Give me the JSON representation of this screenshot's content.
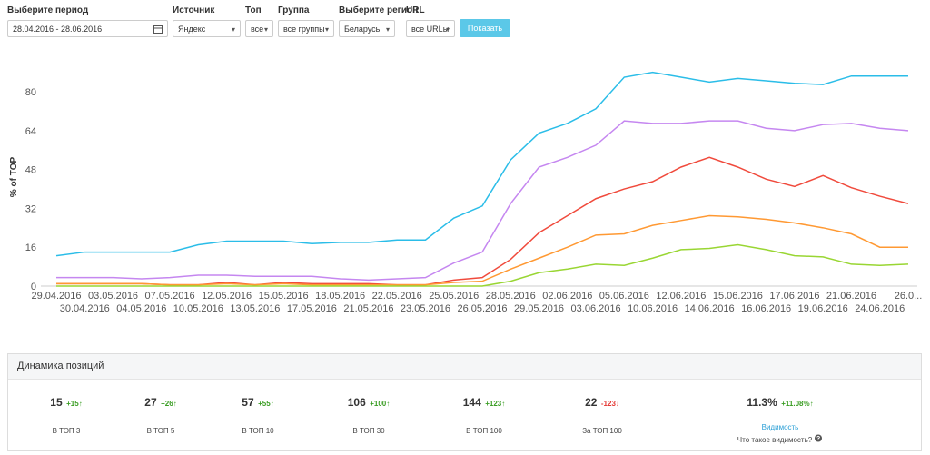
{
  "filters": [
    {
      "label": "Выберите период",
      "value": "28.04.2016 - 28.06.2016"
    },
    {
      "label": "Источник",
      "value": "Яндекс"
    },
    {
      "label": "Топ",
      "value": "все"
    },
    {
      "label": "Группа",
      "value": "все группы"
    },
    {
      "label": "Выберите регион",
      "value": "Беларусь"
    },
    {
      "label": "URL",
      "value": "все URLы"
    }
  ],
  "button": "Показать",
  "chart_data": {
    "type": "line",
    "y_label": "% of TOP",
    "categories": [
      "29.04.2016",
      "30.04.2016",
      "03.05.2016",
      "04.05.2016",
      "07.05.2016",
      "10.05.2016",
      "12.05.2016",
      "13.05.2016",
      "15.05.2016",
      "17.05.2016",
      "18.05.2016",
      "21.05.2016",
      "22.05.2016",
      "23.05.2016",
      "25.05.2016",
      "26.05.2016",
      "28.05.2016",
      "29.05.2016",
      "02.06.2016",
      "03.06.2016",
      "05.06.2016",
      "10.06.2016",
      "12.06.2016",
      "14.06.2016",
      "15.06.2016",
      "16.06.2016",
      "17.06.2016",
      "19.06.2016",
      "21.06.2016",
      "24.06.2016",
      "26.0..."
    ],
    "series": [
      {
        "color": "#2bbde8",
        "values": [
          12.5,
          14,
          14,
          14,
          14,
          17,
          18.5,
          18.5,
          18.5,
          17.5,
          18,
          18,
          19,
          19,
          28,
          33,
          52,
          63,
          67,
          73,
          86,
          88,
          86,
          84,
          85.5,
          84.5,
          83.5,
          83,
          86.5,
          86.5,
          86.5
        ]
      },
      {
        "color": "#c587f0",
        "values": [
          3.5,
          3.5,
          3.5,
          3,
          3.5,
          4.5,
          4.5,
          4,
          4,
          4,
          3,
          2.5,
          3,
          3.5,
          9.5,
          14,
          34,
          49,
          53,
          58,
          68,
          67,
          67,
          68,
          68,
          65,
          64,
          66.5,
          67,
          65,
          64
        ]
      },
      {
        "color": "#f04a3c",
        "values": [
          1,
          1,
          1,
          1,
          0.5,
          0.5,
          1.5,
          0.5,
          1.5,
          1,
          1,
          1,
          0.5,
          0.5,
          2.5,
          3.5,
          11,
          22,
          29,
          36,
          40,
          43,
          49,
          53,
          49,
          44,
          41,
          45.5,
          40.5,
          37,
          34
        ]
      },
      {
        "color": "#ff9933",
        "values": [
          1,
          1,
          1,
          1,
          0.5,
          0.5,
          1,
          0.5,
          1,
          0.5,
          0.5,
          0.5,
          0.5,
          0.5,
          1.5,
          2,
          7,
          11.5,
          16,
          21,
          21.5,
          25,
          27,
          29,
          28.5,
          27.5,
          26,
          24,
          21.5,
          16,
          16
        ]
      },
      {
        "color": "#99d633",
        "values": [
          0,
          0,
          0,
          0,
          0,
          0,
          0,
          0,
          0,
          0,
          0,
          0,
          0,
          0,
          0,
          0,
          2,
          5.5,
          7,
          9,
          8.5,
          11.5,
          15,
          15.5,
          17,
          15,
          12.5,
          12,
          9,
          8.5,
          9
        ]
      }
    ],
    "ylim": [
      0,
      92
    ],
    "yticks": [
      0,
      16,
      32,
      48,
      64,
      80
    ],
    "grid": false
  },
  "stats": {
    "title": "Динамика позиций",
    "items": [
      {
        "value": "15",
        "delta": "+15",
        "trend": "up",
        "label": "В ТОП 3"
      },
      {
        "value": "27",
        "delta": "+26",
        "trend": "up",
        "label": "В ТОП 5"
      },
      {
        "value": "57",
        "delta": "+55",
        "trend": "up",
        "label": "В ТОП 10"
      },
      {
        "value": "106",
        "delta": "+100",
        "trend": "up",
        "label": "В ТОП 30"
      },
      {
        "value": "144",
        "delta": "+123",
        "trend": "up",
        "label": "В ТОП 100"
      },
      {
        "value": "22",
        "delta": "-123",
        "trend": "down",
        "label": "За ТОП 100"
      },
      {
        "value": "11.3%",
        "delta": "+11.08%",
        "trend": "up",
        "label": "Видимость",
        "help": "Что такое видимость?"
      }
    ]
  }
}
